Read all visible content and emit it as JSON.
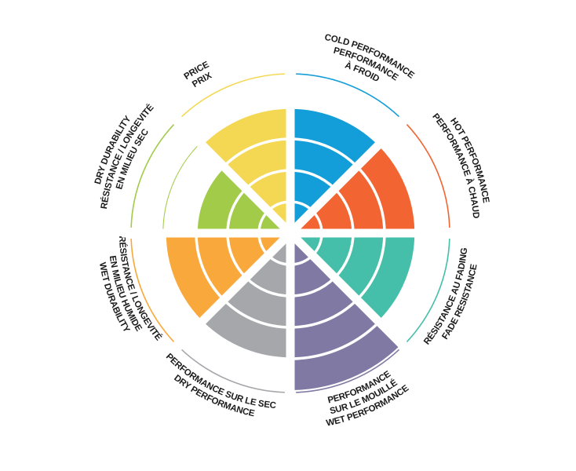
{
  "chart_data": {
    "type": "radial-bar",
    "max_level": 5,
    "grid": "concentric rings",
    "categories": [
      {
        "key": "cold",
        "lines": [
          "COLD PERFORMANCE",
          "PERFORMANCE À FROID"
        ],
        "value": 4,
        "color": "#139ed9",
        "label_lines": [
          "COLD PERFORMANCE",
          "PERFORMANCE",
          "À FROID"
        ]
      },
      {
        "key": "hot",
        "lines": [
          "HOT PERFORMANCE",
          "PERFORMANCE À CHAUD"
        ],
        "value": 4,
        "color": "#f26532"
      },
      {
        "key": "fade",
        "lines": [
          "RÉSISTANCE AU FADING",
          "FADE RESISTANCE"
        ],
        "value": 4,
        "color": "#45bfa9"
      },
      {
        "key": "wet-performance",
        "lines": [
          "PERFORMANCE",
          "SUR LE MOUILLÉ",
          "WET PERFORMANCE"
        ],
        "value": 5,
        "color": "#8079a3"
      },
      {
        "key": "dry-performance",
        "lines": [
          "PERFORMANCE SUR LE SEC",
          "DRY PERFORMANCE"
        ],
        "value": 4,
        "color": "#a6a7ab"
      },
      {
        "key": "wet-durability",
        "lines": [
          "RÉSISTANCE / LONGEVITÉ",
          "EN MILIEU HUMIDE",
          "WET DURABILITY"
        ],
        "value": 4,
        "color": "#f9a93b"
      },
      {
        "key": "dry-durability",
        "lines": [
          "DRY DURABILITY",
          "RÉSISTANCE / LONGEVITÉ",
          "EN MILIEU SEC"
        ],
        "value": 3,
        "color": "#a3cb4a"
      },
      {
        "key": "price",
        "lines": [
          "PRICE",
          "PRIX"
        ],
        "value": 4,
        "color": "#f4d853"
      }
    ]
  }
}
